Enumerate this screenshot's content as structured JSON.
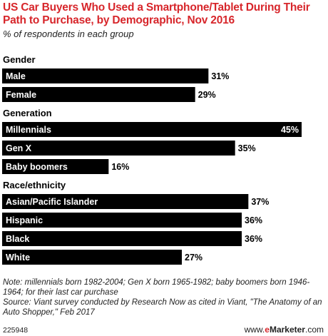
{
  "chart_data": {
    "type": "bar",
    "orientation": "horizontal",
    "title": "US Car Buyers Who Used a Smartphone/Tablet During Their Path to Purchase, by Demographic, Nov 2016",
    "subtitle": "% of respondents in each group",
    "xlim": [
      0,
      45
    ],
    "value_suffix": "%",
    "groups": [
      {
        "name": "Gender",
        "categories": [
          "Male",
          "Female"
        ],
        "values": [
          31,
          29
        ]
      },
      {
        "name": "Generation",
        "categories": [
          "Millennials",
          "Gen X",
          "Baby boomers"
        ],
        "values": [
          45,
          35,
          16
        ]
      },
      {
        "name": "Race/ethnicity",
        "categories": [
          "Asian/Pacific Islander",
          "Hispanic",
          "Black",
          "White"
        ],
        "values": [
          37,
          36,
          36,
          27
        ]
      }
    ],
    "colors": {
      "bar": "#000000",
      "bar_text": "#ffffff",
      "title": "#d7262b"
    }
  },
  "notes": {
    "note": "Note: millennials born 1982-2004; Gen X born 1965-1982; baby boomers born 1946-1964; for their last car purchase",
    "source": "Source: Viant survey conducted by Research Now as cited in Viant, \"The Anatomy of an Auto Shopper,\" Feb 2017"
  },
  "footer": {
    "chart_id": "225948",
    "brand_prefix": "www.",
    "brand_e": "e",
    "brand_name": "Marketer",
    "brand_suffix": ".com"
  }
}
